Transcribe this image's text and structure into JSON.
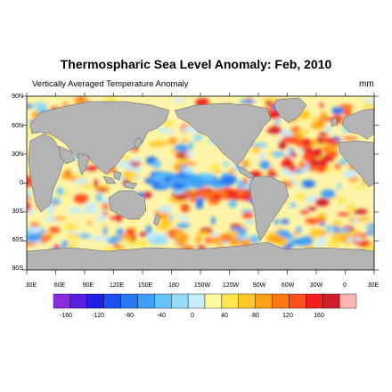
{
  "title": "Thermospharic Sea Level Anomaly: Feb, 2010",
  "subtitle": "Vertically Averaged Temperature Anomaly",
  "units": "mm",
  "lat_labels": [
    "90N",
    "60N",
    "30N",
    "0",
    "30S",
    "60S",
    "90S"
  ],
  "lon_labels": [
    "30E",
    "60E",
    "90E",
    "120E",
    "150E",
    "180",
    "150W",
    "120W",
    "90W",
    "60W",
    "30W",
    "0",
    "30E"
  ],
  "colorbar": {
    "labels": [
      "-160",
      "-120",
      "-80",
      "-40",
      "0",
      "40",
      "80",
      "120",
      "160"
    ],
    "colors": [
      "#8a2be2",
      "#5a1ee0",
      "#1e1ee6",
      "#1e50f0",
      "#2878f0",
      "#3ca0f5",
      "#64c3f8",
      "#96dcfa",
      "#c8ecfb",
      "#fffaa0",
      "#ffe650",
      "#ffc828",
      "#ffa014",
      "#ff7814",
      "#ff501e",
      "#f01e1e",
      "#d21e28",
      "#ffb4b4"
    ]
  },
  "colors": {
    "land": "#b4b4b4",
    "ocean_neutral": "#fff5a8"
  }
}
